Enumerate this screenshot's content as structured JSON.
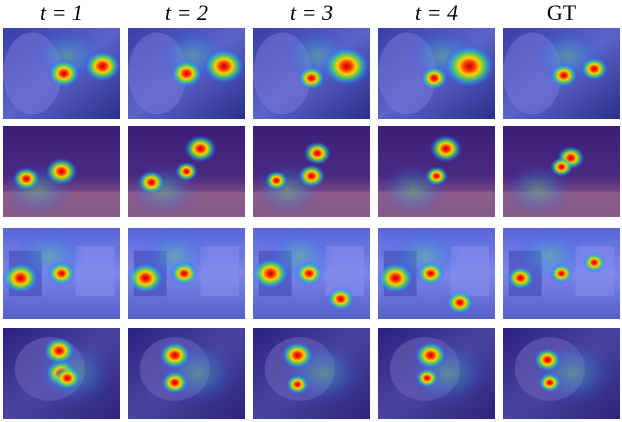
{
  "columns": [
    "t = 1",
    "t = 2",
    "t = 3",
    "t = 4",
    "GT"
  ]
}
